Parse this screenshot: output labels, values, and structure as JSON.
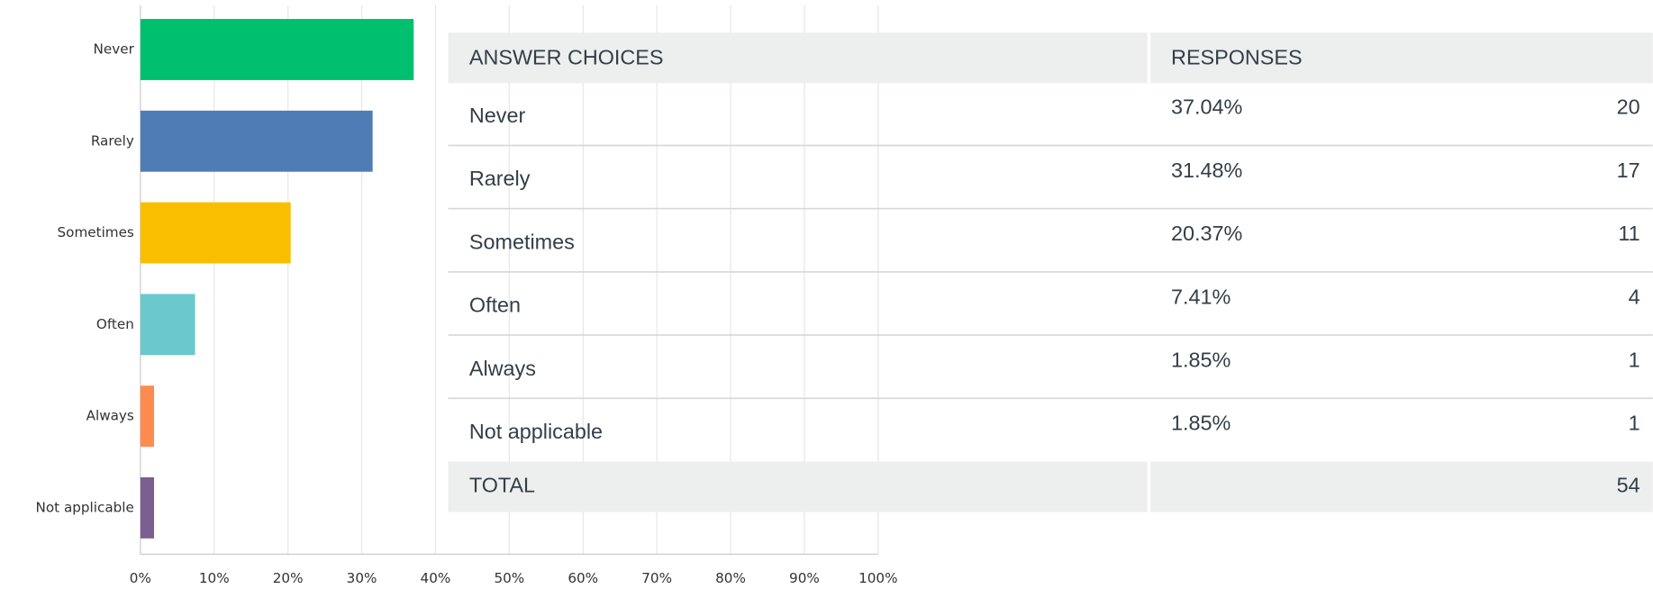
{
  "chart_data": {
    "type": "bar",
    "orientation": "horizontal",
    "categories": [
      "Never",
      "Rarely",
      "Sometimes",
      "Often",
      "Always",
      "Not applicable"
    ],
    "values": [
      37.04,
      31.48,
      20.37,
      7.41,
      1.85,
      1.85
    ],
    "colors": [
      "#00bf6f",
      "#507cb6",
      "#f9be00",
      "#6bc8cd",
      "#ff8b4f",
      "#7d5e90"
    ],
    "xlim": [
      0,
      100
    ],
    "xticks": [
      {
        "value": 0,
        "label": "0%"
      },
      {
        "value": 10,
        "label": "10%"
      },
      {
        "value": 20,
        "label": "20%"
      },
      {
        "value": 30,
        "label": "30%"
      },
      {
        "value": 40,
        "label": "40%"
      },
      {
        "value": 50,
        "label": "50%"
      },
      {
        "value": 60,
        "label": "60%"
      },
      {
        "value": 70,
        "label": "70%"
      },
      {
        "value": 80,
        "label": "80%"
      },
      {
        "value": 90,
        "label": "90%"
      },
      {
        "value": 100,
        "label": "100%"
      }
    ],
    "grid": true
  },
  "table": {
    "headers": [
      "ANSWER CHOICES",
      "RESPONSES"
    ],
    "rows": [
      [
        "Never",
        "37.04%",
        "20"
      ],
      [
        "Rarely",
        "31.48%",
        "17"
      ],
      [
        "Sometimes",
        "20.37%",
        "11"
      ],
      [
        "Often",
        "7.41%",
        "4"
      ],
      [
        "Always",
        "1.85%",
        "1"
      ],
      [
        "Not applicable",
        "1.85%",
        "1"
      ]
    ],
    "total": [
      "TOTAL",
      "54"
    ]
  }
}
